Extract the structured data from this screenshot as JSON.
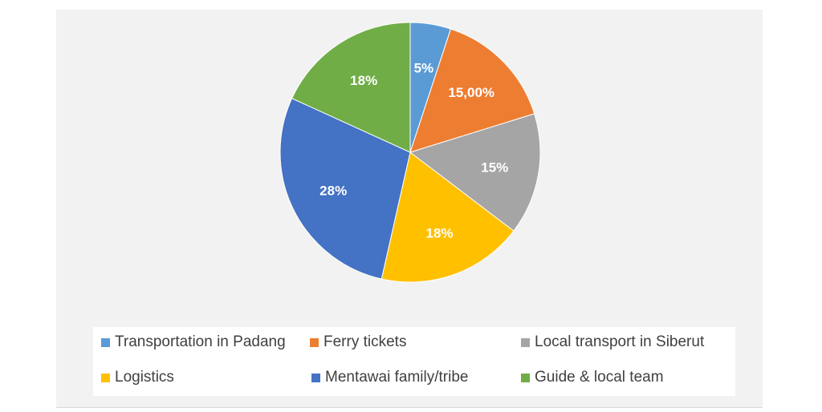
{
  "chart_data": {
    "type": "pie",
    "title": "",
    "start_angle_deg": 0,
    "direction": "clockwise",
    "slices": [
      {
        "name": "Transportation in Padang",
        "value": 5,
        "label": "5%",
        "color": "#5b9bd5"
      },
      {
        "name": "Ferry tickets",
        "value": 15,
        "label": "15,00%",
        "color": "#ed7d31"
      },
      {
        "name": "Local transport in Siberut",
        "value": 15,
        "label": "15%",
        "color": "#a5a5a5"
      },
      {
        "name": "Logistics",
        "value": 18,
        "label": "18%",
        "color": "#ffc000"
      },
      {
        "name": "Mentawai family/tribe",
        "value": 28,
        "label": "28%",
        "color": "#4472c4"
      },
      {
        "name": "Guide & local team",
        "value": 18,
        "label": "18%",
        "color": "#70ad47"
      }
    ],
    "legend_position": "bottom"
  }
}
